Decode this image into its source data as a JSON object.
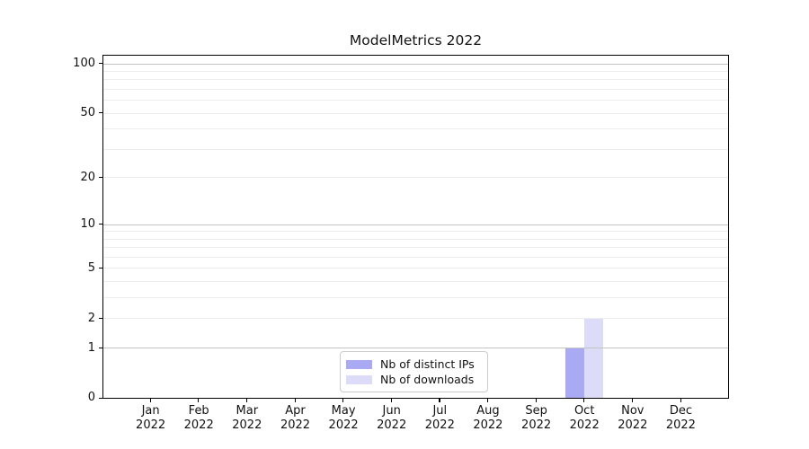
{
  "chart_data": {
    "type": "bar",
    "title": "ModelMetrics 2022",
    "x_month_labels": [
      "Jan",
      "Feb",
      "Mar",
      "Apr",
      "May",
      "Jun",
      "Jul",
      "Aug",
      "Sep",
      "Oct",
      "Nov",
      "Dec"
    ],
    "x_year_label": "2022",
    "series": [
      {
        "name": "Nb of distinct IPs",
        "color": "#a9a9f4",
        "values": [
          0,
          0,
          0,
          0,
          0,
          0,
          0,
          0,
          0,
          1,
          0,
          0
        ]
      },
      {
        "name": "Nb of downloads",
        "color": "#dcdcf9",
        "values": [
          0,
          0,
          0,
          0,
          0,
          0,
          0,
          0,
          0,
          2,
          0,
          0
        ]
      }
    ],
    "yscale": "log1p",
    "yticks": [
      100,
      50,
      20,
      10,
      5,
      2,
      1,
      0
    ],
    "ylim": [
      0,
      113
    ],
    "grid": "horizontal",
    "grid_major_values": [
      1,
      10,
      100
    ],
    "grid_minor_values": [
      2,
      3,
      4,
      5,
      6,
      7,
      8,
      9,
      20,
      30,
      40,
      50,
      60,
      70,
      80,
      90
    ],
    "legend_position": "lower center"
  }
}
